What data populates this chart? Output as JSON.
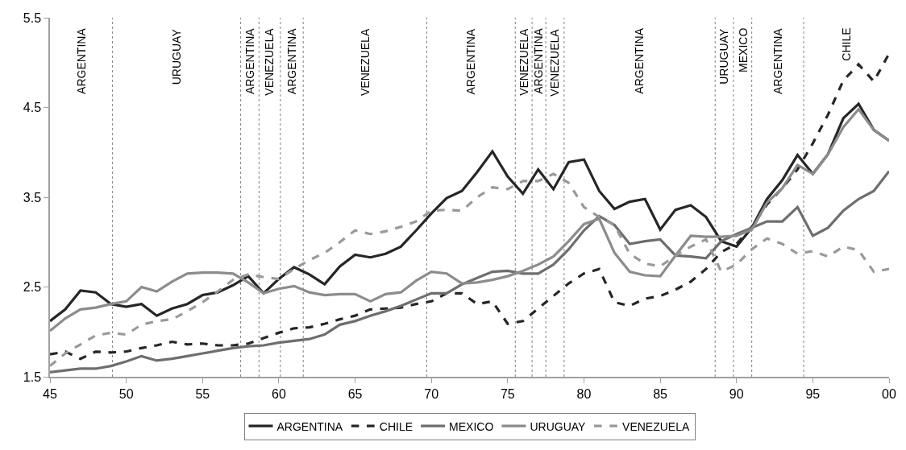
{
  "chart_data": {
    "type": "line",
    "x": [
      1945,
      1946,
      1947,
      1948,
      1949,
      1950,
      1951,
      1952,
      1953,
      1954,
      1955,
      1956,
      1957,
      1958,
      1959,
      1960,
      1961,
      1962,
      1963,
      1964,
      1965,
      1966,
      1967,
      1968,
      1969,
      1970,
      1971,
      1972,
      1973,
      1974,
      1975,
      1976,
      1977,
      1978,
      1979,
      1980,
      1981,
      1982,
      1983,
      1984,
      1985,
      1986,
      1987,
      1988,
      1989,
      1990,
      1991,
      1992,
      1993,
      1994,
      1995,
      1996,
      1997,
      1998,
      1999,
      2000
    ],
    "series": [
      {
        "name": "ARGENTINA",
        "color": "#262626",
        "line_style": "solid",
        "values": [
          2.12,
          2.25,
          2.46,
          2.44,
          2.31,
          2.28,
          2.31,
          2.18,
          2.26,
          2.31,
          2.41,
          2.44,
          2.52,
          2.62,
          2.43,
          2.59,
          2.72,
          2.64,
          2.53,
          2.73,
          2.86,
          2.83,
          2.87,
          2.95,
          3.13,
          3.32,
          3.49,
          3.57,
          3.78,
          4.01,
          3.73,
          3.54,
          3.81,
          3.59,
          3.89,
          3.92,
          3.57,
          3.37,
          3.45,
          3.48,
          3.14,
          3.36,
          3.41,
          3.28,
          3.01,
          2.95,
          3.16,
          3.48,
          3.69,
          3.97,
          3.76,
          3.98,
          4.38,
          4.54,
          4.25,
          4.13
        ]
      },
      {
        "name": "CHILE",
        "color": "#262626",
        "line_style": "dashed",
        "values": [
          1.75,
          1.78,
          1.7,
          1.78,
          1.77,
          1.78,
          1.82,
          1.85,
          1.89,
          1.86,
          1.87,
          1.85,
          1.85,
          1.87,
          1.93,
          1.99,
          2.04,
          2.05,
          2.09,
          2.14,
          2.18,
          2.25,
          2.26,
          2.27,
          2.31,
          2.34,
          2.43,
          2.43,
          2.31,
          2.34,
          2.09,
          2.12,
          2.26,
          2.4,
          2.54,
          2.65,
          2.7,
          2.33,
          2.29,
          2.37,
          2.4,
          2.47,
          2.56,
          2.7,
          2.89,
          2.98,
          3.17,
          3.42,
          3.6,
          3.81,
          4.1,
          4.42,
          4.8,
          4.98,
          4.79,
          5.1
        ]
      },
      {
        "name": "MEXICO",
        "color": "#6e6e6e",
        "line_style": "solid",
        "values": [
          1.55,
          1.57,
          1.59,
          1.59,
          1.62,
          1.67,
          1.73,
          1.68,
          1.7,
          1.73,
          1.76,
          1.79,
          1.82,
          1.84,
          1.85,
          1.88,
          1.9,
          1.92,
          1.97,
          2.08,
          2.12,
          2.18,
          2.23,
          2.29,
          2.36,
          2.43,
          2.43,
          2.53,
          2.6,
          2.67,
          2.68,
          2.65,
          2.65,
          2.75,
          2.92,
          3.13,
          3.29,
          3.19,
          2.98,
          3.01,
          3.03,
          2.85,
          2.84,
          2.82,
          3.01,
          3.09,
          3.16,
          3.23,
          3.23,
          3.39,
          3.07,
          3.16,
          3.35,
          3.48,
          3.57,
          3.79
        ]
      },
      {
        "name": "URUGUAY",
        "color": "#8c8c8c",
        "line_style": "solid",
        "values": [
          2.01,
          2.15,
          2.25,
          2.27,
          2.31,
          2.34,
          2.5,
          2.45,
          2.56,
          2.65,
          2.66,
          2.66,
          2.65,
          2.55,
          2.43,
          2.48,
          2.51,
          2.44,
          2.41,
          2.42,
          2.42,
          2.34,
          2.42,
          2.44,
          2.57,
          2.67,
          2.65,
          2.54,
          2.55,
          2.58,
          2.62,
          2.68,
          2.75,
          2.84,
          3.01,
          3.2,
          3.26,
          2.88,
          2.67,
          2.63,
          2.62,
          2.85,
          3.07,
          3.06,
          3.06,
          3.07,
          3.14,
          3.44,
          3.6,
          3.86,
          3.76,
          3.98,
          4.28,
          4.48,
          4.25,
          4.13
        ]
      },
      {
        "name": "VENEZUELA",
        "color": "#999999",
        "line_style": "dashed",
        "values": [
          1.62,
          1.76,
          1.86,
          1.96,
          1.99,
          1.97,
          2.08,
          2.12,
          2.14,
          2.23,
          2.33,
          2.45,
          2.58,
          2.64,
          2.61,
          2.59,
          2.7,
          2.8,
          2.88,
          3.0,
          3.13,
          3.09,
          3.12,
          3.17,
          3.23,
          3.35,
          3.36,
          3.35,
          3.5,
          3.61,
          3.59,
          3.68,
          3.68,
          3.76,
          3.66,
          3.39,
          3.28,
          3.19,
          2.87,
          2.76,
          2.73,
          2.85,
          2.95,
          3.03,
          2.67,
          2.75,
          2.92,
          3.04,
          2.98,
          2.87,
          2.9,
          2.84,
          2.95,
          2.91,
          2.67,
          2.7
        ]
      }
    ],
    "xlim": [
      1945,
      2000
    ],
    "xticks": [
      {
        "value": 1945,
        "label": "45"
      },
      {
        "value": 1950,
        "label": "50"
      },
      {
        "value": 1955,
        "label": "55"
      },
      {
        "value": 1960,
        "label": "60"
      },
      {
        "value": 1965,
        "label": "65"
      },
      {
        "value": 1970,
        "label": "70"
      },
      {
        "value": 1975,
        "label": "75"
      },
      {
        "value": 1980,
        "label": "80"
      },
      {
        "value": 1985,
        "label": "85"
      },
      {
        "value": 1990,
        "label": "90"
      },
      {
        "value": 1995,
        "label": "95"
      },
      {
        "value": 2000,
        "label": "00"
      }
    ],
    "ylim": [
      1.5,
      5.5
    ],
    "yticks": [
      1.5,
      2.5,
      3.5,
      4.5,
      5.5
    ],
    "ref_lines": [
      {
        "axis": "x",
        "value": 1949.1,
        "color": "#808080",
        "line_style": "dotted"
      },
      {
        "axis": "x",
        "value": 1957.5,
        "color": "#808080",
        "line_style": "dotted"
      },
      {
        "axis": "x",
        "value": 1958.7,
        "color": "#808080",
        "line_style": "dotted"
      },
      {
        "axis": "x",
        "value": 1960.1,
        "color": "#808080",
        "line_style": "dotted"
      },
      {
        "axis": "x",
        "value": 1961.6,
        "color": "#808080",
        "line_style": "dotted"
      },
      {
        "axis": "x",
        "value": 1969.7,
        "color": "#808080",
        "line_style": "dotted"
      },
      {
        "axis": "x",
        "value": 1975.5,
        "color": "#808080",
        "line_style": "dotted"
      },
      {
        "axis": "x",
        "value": 1976.6,
        "color": "#808080",
        "line_style": "dotted"
      },
      {
        "axis": "x",
        "value": 1977.5,
        "color": "#808080",
        "line_style": "dotted"
      },
      {
        "axis": "x",
        "value": 1978.7,
        "color": "#808080",
        "line_style": "dotted"
      },
      {
        "axis": "x",
        "value": 1988.6,
        "color": "#808080",
        "line_style": "dotted"
      },
      {
        "axis": "x",
        "value": 1989.8,
        "color": "#808080",
        "line_style": "dotted"
      },
      {
        "axis": "x",
        "value": 1991.0,
        "color": "#808080",
        "line_style": "dotted"
      },
      {
        "axis": "x",
        "value": 1994.4,
        "color": "#808080",
        "line_style": "dotted"
      }
    ],
    "annotations": [
      "ARGENTINA",
      "URUGUAY",
      "ARGENTINA",
      "VENEZUELA",
      "ARGENTINA",
      "VENEZUELA",
      "ARGENTINA",
      "VENEZUELA",
      "ARGENTINA",
      "VENEZUELA",
      "ARGENTINA",
      "URUGUAY",
      "MEXICO",
      "ARGENTINA",
      "CHILE"
    ],
    "legend": "bottom",
    "grid": false,
    "marker": "none"
  }
}
